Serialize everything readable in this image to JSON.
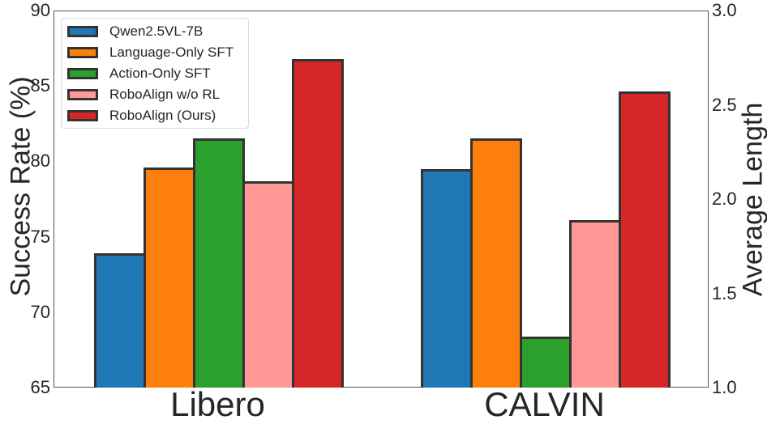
{
  "chart_data": {
    "type": "bar",
    "title": "",
    "categories": [
      "Libero",
      "CALVIN"
    ],
    "series": [
      {
        "name": "Qwen2.5VL-7B",
        "color": "#1f77b4",
        "values": [
          73.9,
          2.16
        ]
      },
      {
        "name": "Language-Only SFT",
        "color": "#ff7f0e",
        "values": [
          79.6,
          2.32
        ]
      },
      {
        "name": "Action-Only SFT",
        "color": "#2ca02c",
        "values": [
          81.5,
          1.27
        ]
      },
      {
        "name": "RoboAlign w/o RL",
        "color": "#ff9896",
        "values": [
          78.7,
          1.89
        ]
      },
      {
        "name": "RoboAlign (Ours)",
        "color": "#d62728",
        "values": [
          86.8,
          2.57
        ]
      }
    ],
    "value_axis_per_category": [
      "left",
      "right"
    ],
    "xlabel": "",
    "ylabel": "Success Rate (%)",
    "ylabel_right": "Average Length",
    "ylim": [
      65,
      90
    ],
    "ylim_right": [
      1.0,
      3.0
    ],
    "yticks": [
      "65",
      "70",
      "75",
      "80",
      "85",
      "90"
    ],
    "yticks_right": [
      "1.0",
      "1.5",
      "2.0",
      "2.5",
      "3.0"
    ],
    "grid": false,
    "legend_position": "upper left"
  }
}
